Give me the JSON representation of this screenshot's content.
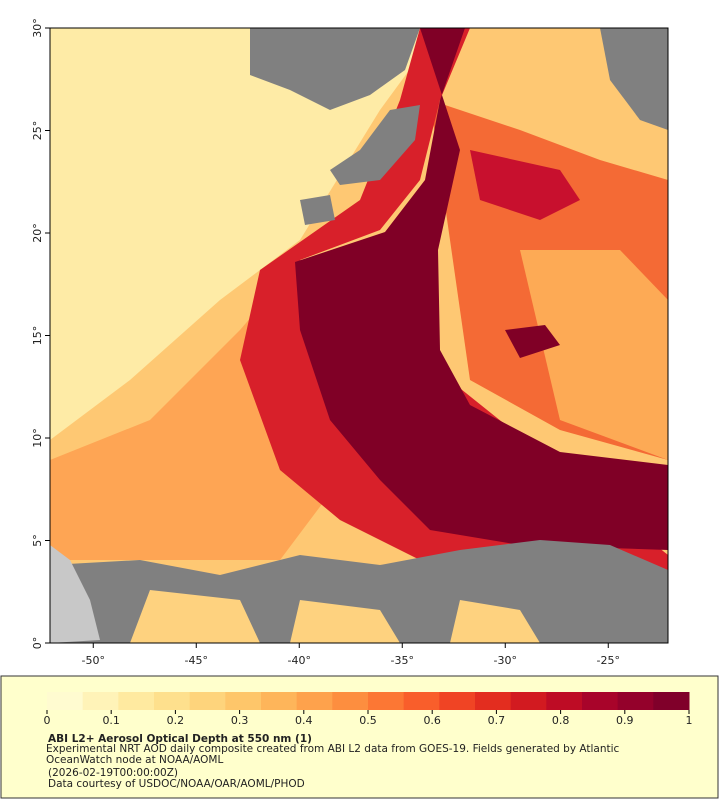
{
  "map": {
    "lon_range": [
      -52.1,
      -22.1
    ],
    "lat_range": [
      0,
      30
    ],
    "lon_ticks": [
      {
        "value": -50,
        "label": "-50°"
      },
      {
        "value": -45,
        "label": "-45°"
      },
      {
        "value": -40,
        "label": "-40°"
      },
      {
        "value": -35,
        "label": "-35°"
      },
      {
        "value": -30,
        "label": "-30°"
      },
      {
        "value": -25,
        "label": "-25°"
      }
    ],
    "lat_ticks": [
      {
        "value": 0,
        "label": "0°"
      },
      {
        "value": 5,
        "label": "5°"
      },
      {
        "value": 10,
        "label": "10°"
      },
      {
        "value": 15,
        "label": "15°"
      },
      {
        "value": 20,
        "label": "20°"
      },
      {
        "value": 25,
        "label": "25°"
      },
      {
        "value": 30,
        "label": "30°"
      }
    ]
  },
  "colorbar": {
    "range": [
      0,
      1
    ],
    "ticks": [
      0,
      0.1,
      0.2,
      0.3,
      0.4,
      0.5,
      0.6,
      0.7,
      0.8,
      0.9,
      1
    ],
    "colors": [
      "#fffbd0",
      "#fff3b8",
      "#ffeaa0",
      "#fee08d",
      "#fed47c",
      "#fec66a",
      "#feb55a",
      "#fea24c",
      "#fd8e3f",
      "#fc7734",
      "#f95e2b",
      "#f04424",
      "#e32d1f",
      "#d21a20",
      "#be0c25",
      "#a8042a",
      "#94012b",
      "#80002a"
    ]
  },
  "caption": {
    "title": "ABI L2+ Aerosol Optical Depth at 550 nm (1)",
    "description": "Experimental NRT AOD daily composite created from ABI L2 data from GOES-19. Fields generated by Atlantic OceanWatch node at NOAA/AOML",
    "timestamp": "(2026-02-19T00:00:00Z)",
    "credit": "Data courtesy of USDOC/NOAA/OAR/AOML/PHOD"
  }
}
